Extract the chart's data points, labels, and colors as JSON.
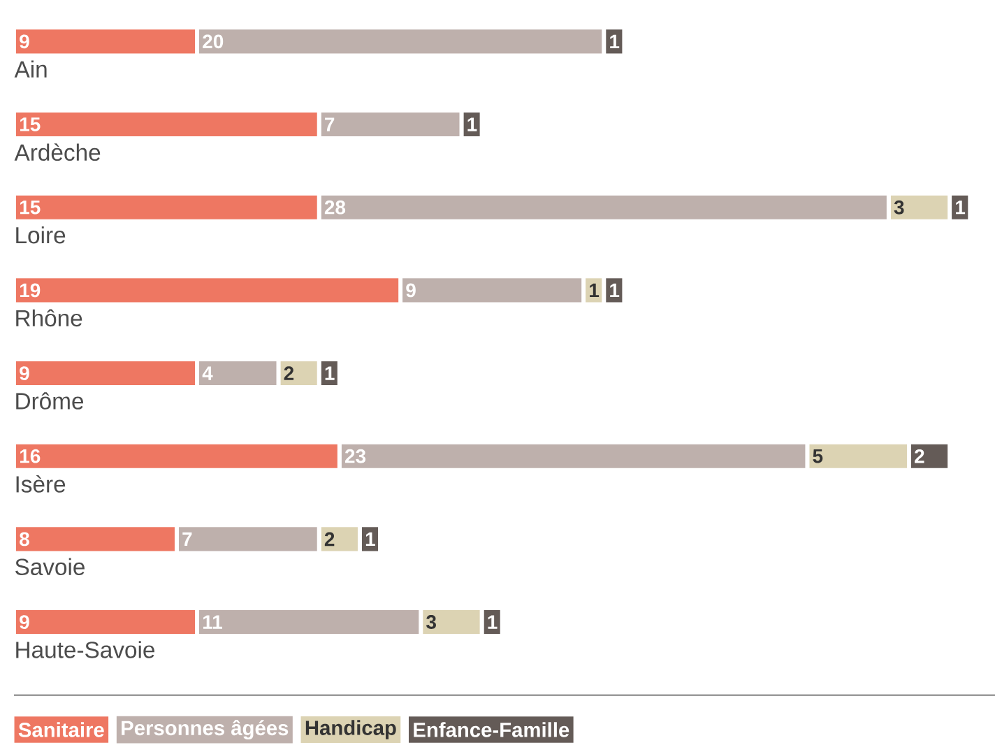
{
  "chart_data": {
    "type": "bar",
    "orientation": "horizontal",
    "stacked": true,
    "data_labels": true,
    "legend": "bottom",
    "categories": [
      "Ain",
      "Ardèche",
      "Loire",
      "Rhône",
      "Drôme",
      "Isère",
      "Savoie",
      "Haute-Savoie"
    ],
    "series": [
      {
        "name": "Sanitaire",
        "color": "#ee7762",
        "values": [
          9,
          15,
          15,
          19,
          9,
          16,
          8,
          9
        ]
      },
      {
        "name": "Personnes âgées",
        "color": "#beb0ac",
        "values": [
          20,
          7,
          28,
          9,
          4,
          23,
          7,
          11
        ]
      },
      {
        "name": "Handicap",
        "color": "#dcd3b3",
        "values": [
          null,
          null,
          3,
          1,
          2,
          5,
          2,
          3
        ]
      },
      {
        "name": "Enfance-Famille",
        "color": "#645b57",
        "values": [
          1,
          1,
          1,
          1,
          1,
          2,
          1,
          1
        ]
      }
    ]
  }
}
